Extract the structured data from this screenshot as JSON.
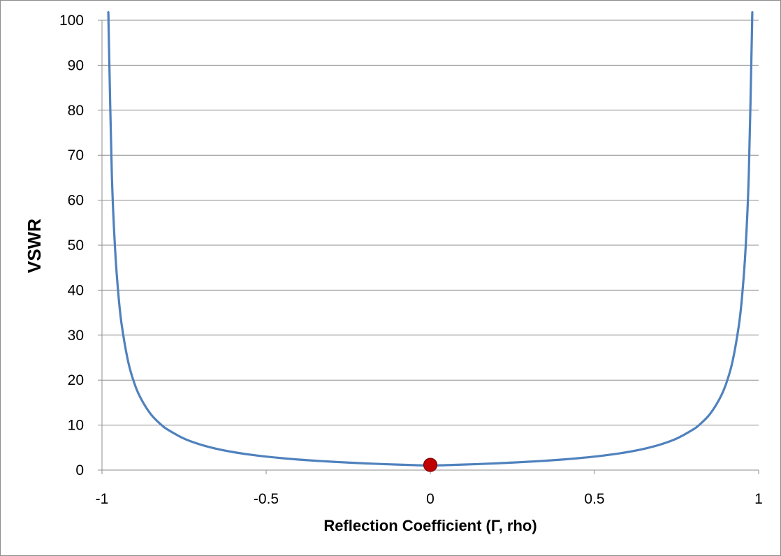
{
  "chart_data": {
    "type": "line",
    "title": "",
    "xlabel": "Reflection Coefficient (Γ, rho)",
    "ylabel": "VSWR",
    "xlim": [
      -1,
      1
    ],
    "ylim": [
      0,
      100
    ],
    "x_ticks": [
      -1,
      -0.5,
      0,
      0.5,
      1
    ],
    "x_tick_labels": [
      "-1",
      "-0.5",
      "0",
      "0.5",
      "1"
    ],
    "y_ticks": [
      0,
      10,
      20,
      30,
      40,
      50,
      60,
      70,
      80,
      90,
      100
    ],
    "y_tick_labels": [
      "0",
      "10",
      "20",
      "30",
      "40",
      "50",
      "60",
      "70",
      "80",
      "90",
      "100"
    ],
    "grid": "horizontal",
    "legend": "none",
    "series": [
      {
        "color": "#4f81bd",
        "x": [
          -0.98,
          -0.97,
          -0.96,
          -0.95,
          -0.94,
          -0.92,
          -0.9,
          -0.88,
          -0.85,
          -0.82,
          -0.8,
          -0.75,
          -0.7,
          -0.65,
          -0.6,
          -0.55,
          -0.5,
          -0.45,
          -0.4,
          -0.35,
          -0.3,
          -0.25,
          -0.2,
          -0.15,
          -0.1,
          -0.05,
          0,
          0.05,
          0.1,
          0.15,
          0.2,
          0.25,
          0.3,
          0.35,
          0.4,
          0.45,
          0.5,
          0.55,
          0.6,
          0.65,
          0.7,
          0.75,
          0.8,
          0.82,
          0.85,
          0.88,
          0.9,
          0.92,
          0.94,
          0.95,
          0.96,
          0.97,
          0.98
        ],
        "values": [
          99,
          65.7,
          49,
          39,
          32.3,
          24,
          19,
          15.7,
          12.3,
          10.1,
          9,
          7,
          5.67,
          4.71,
          4,
          3.44,
          3,
          2.64,
          2.33,
          2.08,
          1.86,
          1.67,
          1.5,
          1.35,
          1.22,
          1.11,
          1,
          1.11,
          1.22,
          1.35,
          1.5,
          1.67,
          1.86,
          2.08,
          2.33,
          2.64,
          3,
          3.44,
          4,
          4.71,
          5.67,
          7,
          9,
          10.1,
          12.3,
          15.7,
          19,
          24,
          32.3,
          39,
          49,
          65.7,
          99
        ]
      }
    ],
    "markers": [
      {
        "x": 0,
        "y": 1,
        "color": "#c00000"
      }
    ]
  }
}
